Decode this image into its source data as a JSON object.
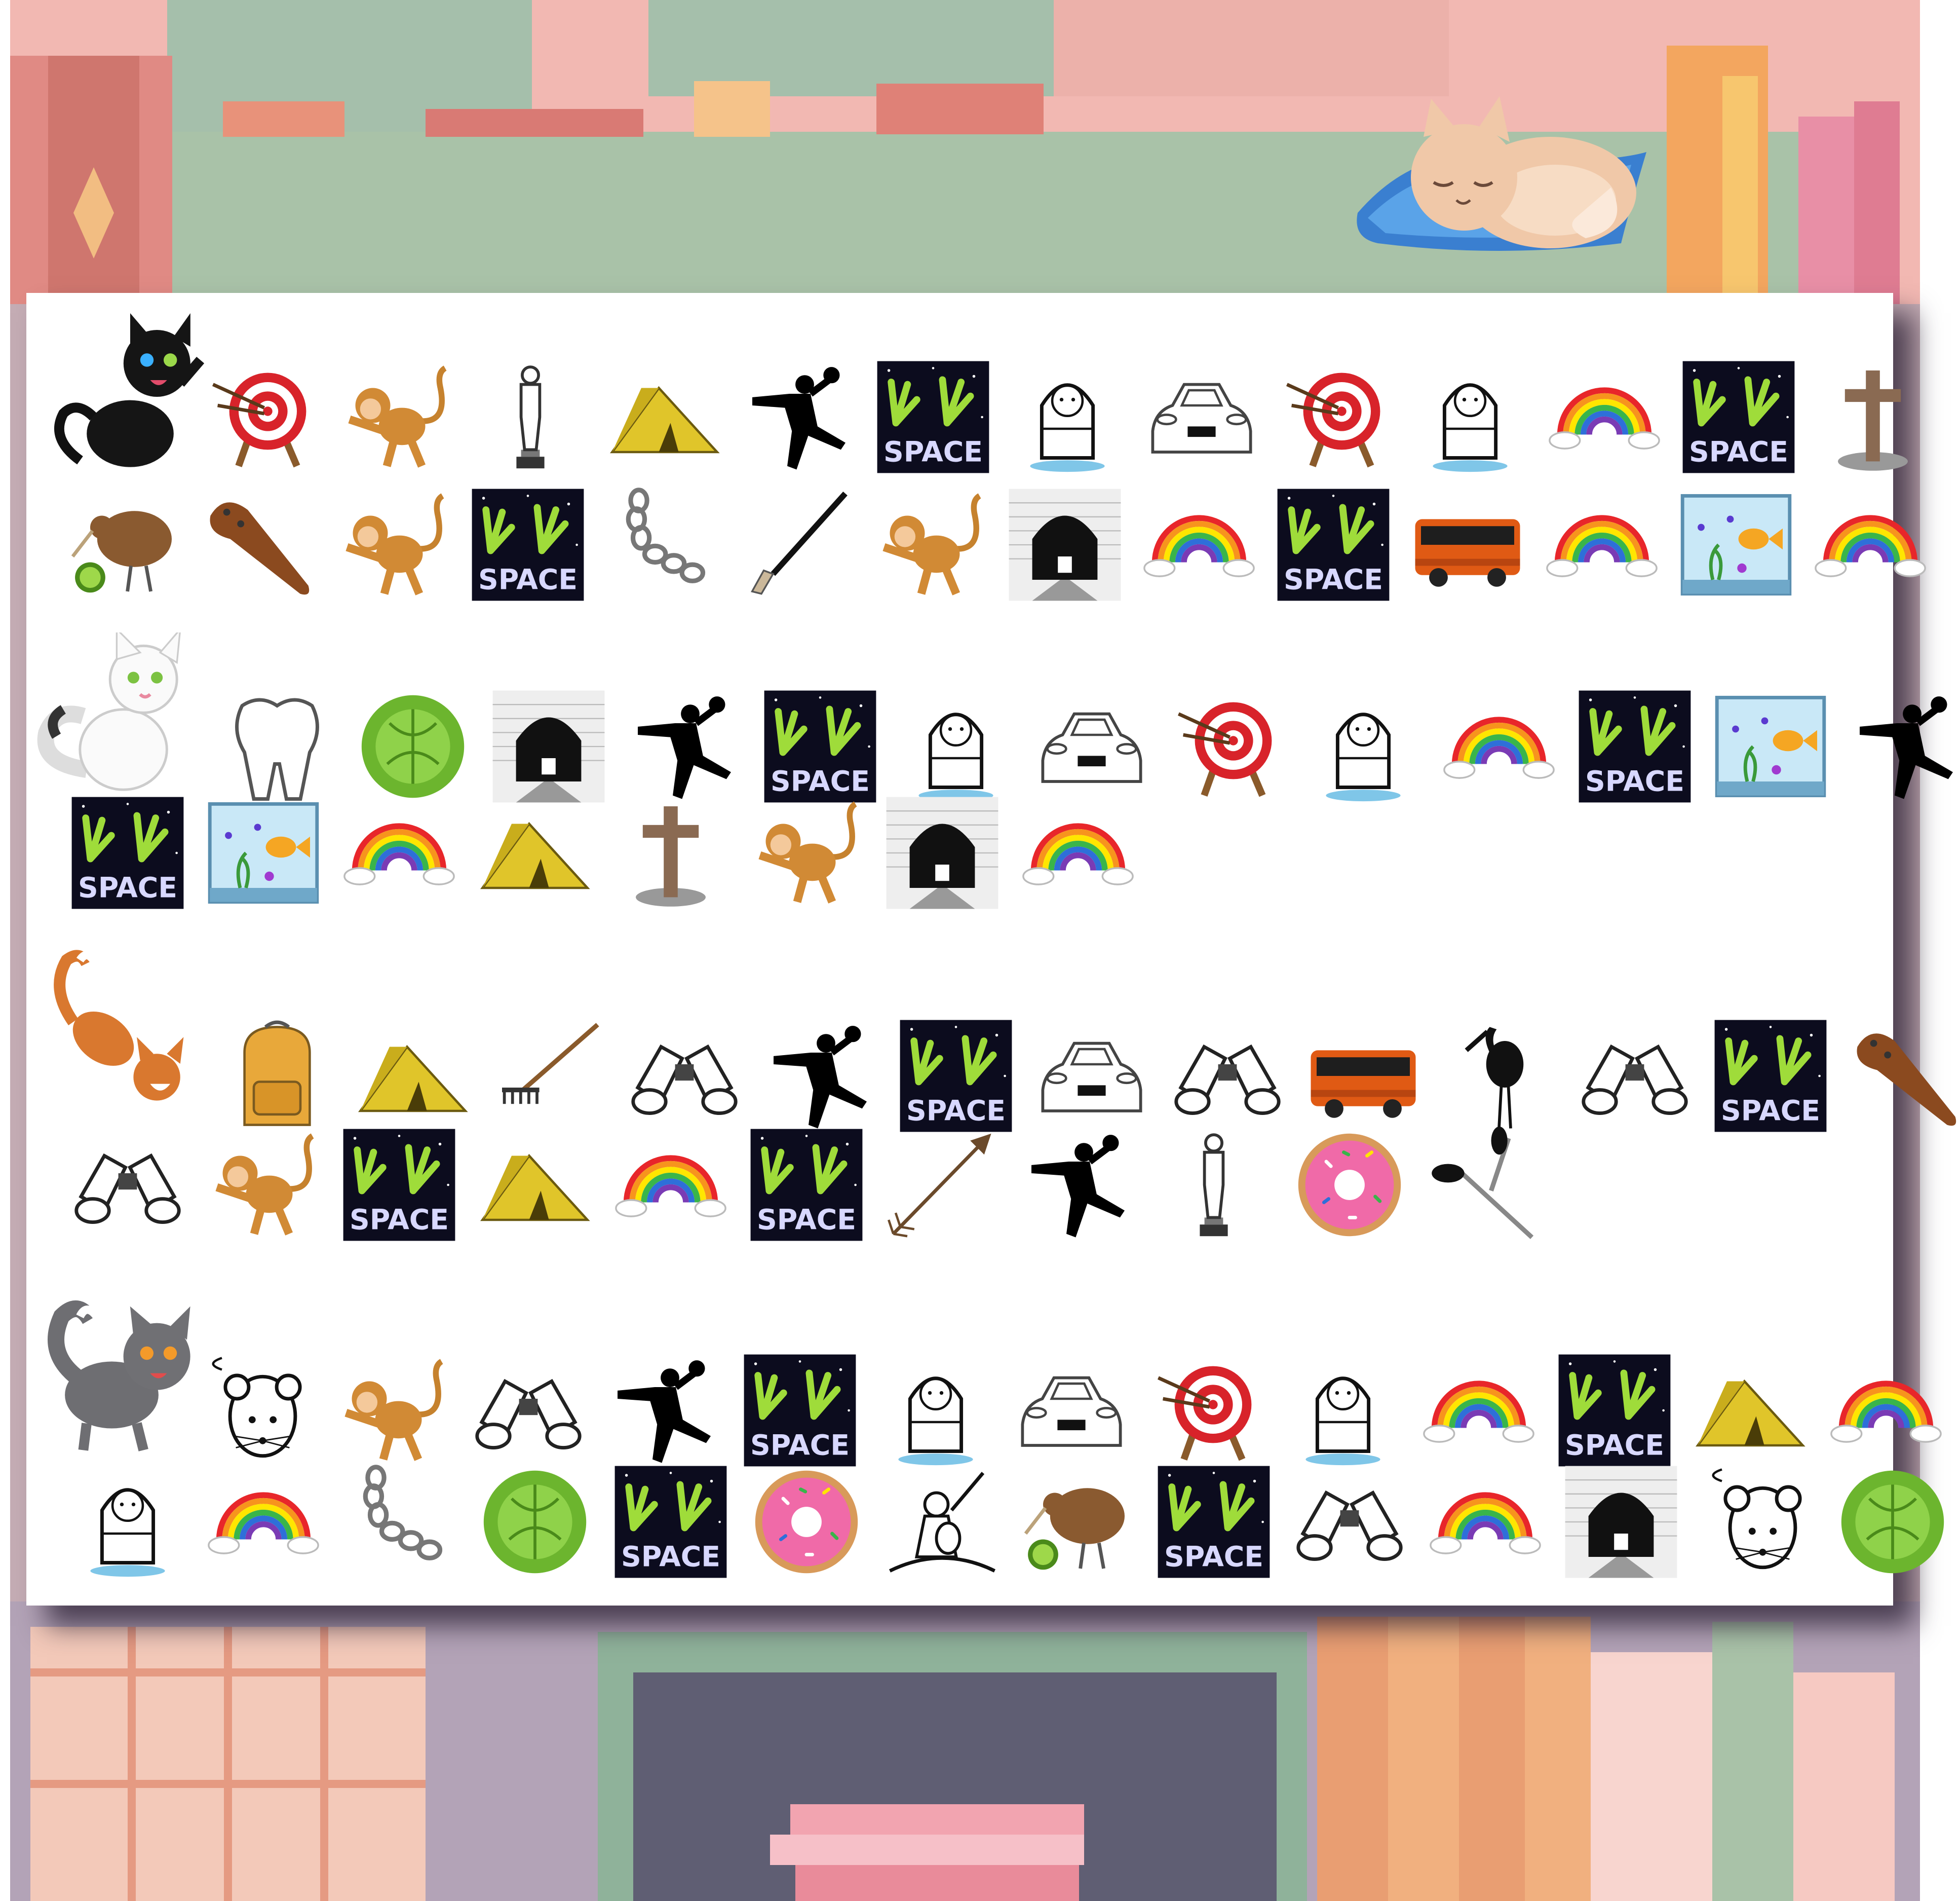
{
  "title": "",
  "players": [
    {
      "name": "black-cat",
      "color": "#1a1a1a",
      "rows": [
        [
          "target",
          "monkey",
          "trophy",
          "tent",
          "player",
          "space",
          "eskimo",
          "car",
          "target",
          "eskimo",
          "rainbow",
          "space",
          "cross"
        ],
        [
          "kiwi",
          "club",
          "monkey",
          "space",
          "chain",
          "brush",
          "monkey",
          "tunnel",
          "rainbow",
          "space",
          "bus",
          "rainbow",
          "aquarium",
          "rainbow"
        ]
      ]
    },
    {
      "name": "white-cat",
      "color": "#f2f2f2",
      "rows": [
        [
          "tooth",
          "cabbage",
          "tunnel",
          "player",
          "space",
          "eskimo",
          "car",
          "target",
          "eskimo",
          "rainbow",
          "space",
          "aquarium",
          "player"
        ],
        [
          "space",
          "aquarium",
          "rainbow",
          "tent",
          "cross",
          "monkey",
          "tunnel",
          "rainbow"
        ]
      ]
    },
    {
      "name": "orange-cat",
      "color": "#d9782f",
      "rows": [
        [
          "backpack",
          "tent",
          "rake",
          "binoculars",
          "player",
          "space",
          "car",
          "binoculars",
          "bus",
          "stork",
          "binoculars",
          "space",
          "club"
        ],
        [
          "binoculars",
          "monkey",
          "space",
          "tent",
          "rainbow",
          "space",
          "arrow",
          "player",
          "trophy",
          "donut",
          "scissors"
        ]
      ]
    },
    {
      "name": "gray-cat",
      "color": "#6e6e72",
      "rows": [
        [
          "mouse",
          "monkey",
          "binoculars",
          "player",
          "space",
          "eskimo",
          "car",
          "target",
          "eskimo",
          "rainbow",
          "space",
          "tent",
          "rainbow"
        ],
        [
          "eskimo",
          "rainbow",
          "chain",
          "cabbage",
          "space",
          "donut",
          "knight",
          "kiwi",
          "space",
          "binoculars",
          "rainbow",
          "tunnel",
          "mouse",
          "cabbage"
        ]
      ]
    }
  ],
  "space_label": "SPACE"
}
